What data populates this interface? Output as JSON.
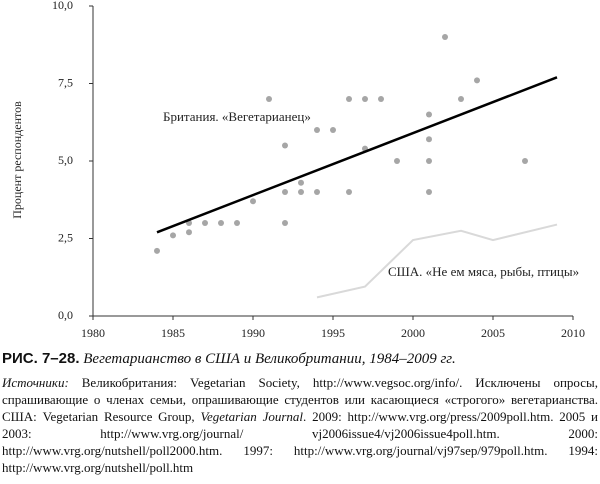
{
  "chart_data": {
    "type": "scatter",
    "y_label": "Процент респондентов",
    "xlim": [
      1980,
      2010
    ],
    "xticks": [
      1980,
      1985,
      1990,
      1995,
      2000,
      2005,
      2010
    ],
    "ylim": [
      0,
      10
    ],
    "yticks": [
      {
        "value": 0,
        "label": "0,0"
      },
      {
        "value": 2.5,
        "label": "2,5"
      },
      {
        "value": 5,
        "label": "5,0"
      },
      {
        "value": 7.5,
        "label": "7,5"
      },
      {
        "value": 10,
        "label": "10,0"
      }
    ],
    "series": [
      {
        "type": "scatter",
        "color": "#a6a6a6",
        "x": [
          1984,
          1985,
          1986,
          1986,
          1987,
          1988,
          1989,
          1990,
          1991,
          1992,
          1992,
          1992,
          1993,
          1993,
          1994,
          1994,
          1995,
          1996,
          1996,
          1997,
          1997,
          1998,
          1999,
          2001,
          2001,
          2001,
          2001,
          2002,
          2003,
          2004,
          2007
        ],
        "values": [
          2.1,
          2.6,
          2.7,
          3.0,
          3.0,
          3.0,
          3.0,
          3.7,
          7.0,
          5.5,
          4.0,
          3.0,
          4.3,
          4.0,
          6.0,
          4.0,
          6.0,
          7.0,
          4.0,
          7.0,
          5.4,
          7.0,
          5.0,
          6.5,
          5.7,
          5.0,
          4.0,
          9.0,
          7.0,
          7.6,
          5.0
        ]
      },
      {
        "type": "line",
        "name": "Британия. «Вегетарианец»",
        "color": "#000000",
        "width": 2.5,
        "x": [
          1984,
          2009
        ],
        "values": [
          2.7,
          7.7
        ]
      },
      {
        "type": "line",
        "name": "США. «Не ем мяса, рыбы, птицы»",
        "color": "#d9d9d9",
        "width": 2,
        "x": [
          1994,
          1997,
          2000,
          2003,
          2005,
          2009
        ],
        "values": [
          0.6,
          0.95,
          2.45,
          2.75,
          2.45,
          2.95
        ]
      }
    ]
  },
  "caption": {
    "figure_number": "РИС. 7–28.",
    "title": "Вегетарианство в США и Великобритании, 1984–2009 гг.",
    "sources_label": "Источники:",
    "sources_parts": [
      "Великобритания: Vegetarian Society, http://www.vegsoc.org/info/. Исключены опросы, спрашивающие о членах семьи, опрашивающие студентов или касающиеся «строгого» вегетарианства. США: Vegetarian Resource Group, ",
      "Vegetarian Journal",
      ". 2009: http://www.vrg.org/press/2009poll.htm. 2005 и 2003: http://www.vrg.org/journal/ vj2006issue4/vj2006issue4poll.htm. 2000: http://www.vrg.org/nutshell/poll2000.htm. 1997: http://www.vrg.org/journal/vj97sep/979poll.htm. 1994: http://www.vrg.org/nutshell/poll.htm"
    ]
  }
}
